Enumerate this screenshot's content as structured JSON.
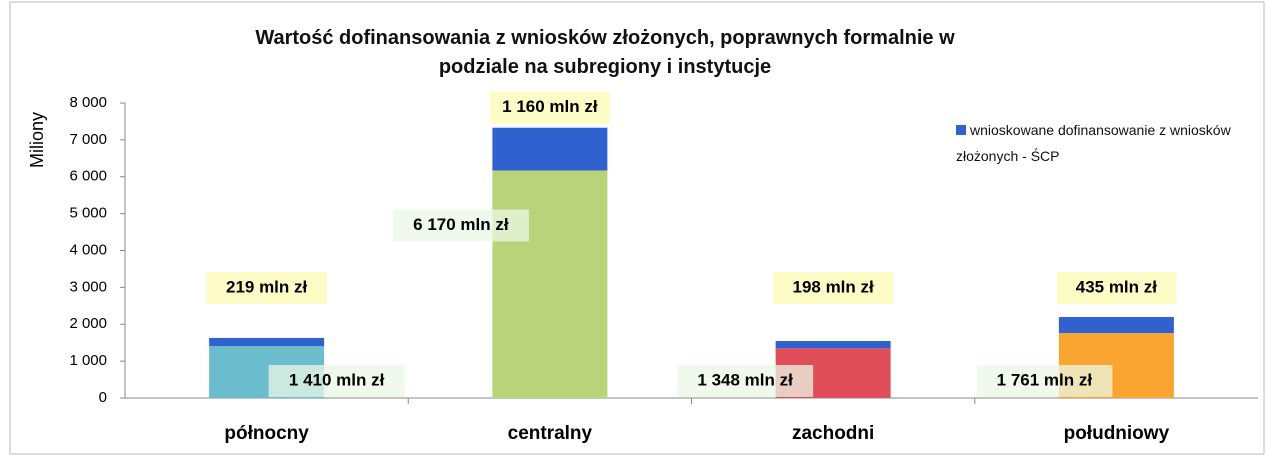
{
  "chart_data": {
    "type": "stacked_bar",
    "title": "Wartość dofinansowania z wniosków złożonych, poprawnych formalnie w podziale na subregiony i instytucje",
    "y_label": "Miliony",
    "categories": [
      "północny",
      "centralny",
      "zachodni",
      "południowy"
    ],
    "series": [
      {
        "colors": [
          "#6bbccc",
          "#b8d37a",
          "#e04e5a",
          "#f9a531"
        ],
        "values": [
          1410,
          6170,
          1348,
          1761
        ],
        "value_labels": [
          "1 410 mln zł",
          "6 170 mln zł",
          "1 348 mln zł",
          "1 761 mln zł"
        ]
      },
      {
        "name": "wnioskowane dofinansowanie z wniosków złożonych  - ŚCP",
        "color": "#2f62cf",
        "values": [
          219,
          1160,
          198,
          435
        ],
        "value_labels": [
          "219 mln zł",
          "1 160 mln zł",
          "198 mln zł",
          "435 mln zł"
        ]
      }
    ],
    "ylim": [
      0,
      8000
    ],
    "yticks": [
      0,
      {
        "value": 1000,
        "label": "1 000"
      },
      {
        "value": 2000,
        "label": "2 000"
      },
      {
        "value": 3000,
        "label": "3 000"
      },
      {
        "value": 4000,
        "label": "4 000"
      },
      {
        "value": 5000,
        "label": "5 000"
      },
      {
        "value": 6000,
        "label": "6 000"
      },
      {
        "value": 7000,
        "label": "7 000"
      },
      {
        "value": 8000,
        "label": "8 000"
      }
    ],
    "legend": "right"
  }
}
